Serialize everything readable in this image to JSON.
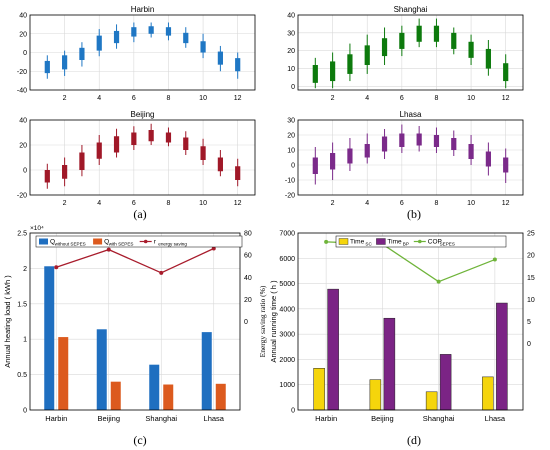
{
  "panel_labels": [
    "(a)",
    "(b)",
    "(c)",
    "(d)"
  ],
  "chart_data": [
    {
      "type": "boxplot",
      "title": "Harbin",
      "color": "#1f77c4",
      "x_ticks": [
        2,
        4,
        6,
        8,
        10,
        12
      ],
      "y_ticks": [
        -40,
        -20,
        0,
        20,
        40
      ],
      "xlim": [
        0,
        13
      ],
      "ylim": [
        -40,
        40
      ],
      "grid": true,
      "boxes": [
        {
          "x": 1,
          "whisker_low": -28,
          "q1": -22,
          "q3": -9,
          "whisker_high": -3
        },
        {
          "x": 2,
          "whisker_low": -25,
          "q1": -18,
          "q3": -3,
          "whisker_high": 2
        },
        {
          "x": 3,
          "whisker_low": -15,
          "q1": -8,
          "q3": 5,
          "whisker_high": 11
        },
        {
          "x": 4,
          "whisker_low": -4,
          "q1": 2,
          "q3": 18,
          "whisker_high": 25
        },
        {
          "x": 5,
          "whisker_low": 4,
          "q1": 10,
          "q3": 23,
          "whisker_high": 30
        },
        {
          "x": 6,
          "whisker_low": 11,
          "q1": 17,
          "q3": 27,
          "whisker_high": 32
        },
        {
          "x": 7,
          "whisker_low": 16,
          "q1": 20,
          "q3": 28,
          "whisker_high": 32
        },
        {
          "x": 8,
          "whisker_low": 13,
          "q1": 18,
          "q3": 27,
          "whisker_high": 32
        },
        {
          "x": 9,
          "whisker_low": 5,
          "q1": 10,
          "q3": 21,
          "whisker_high": 27
        },
        {
          "x": 10,
          "whisker_low": -6,
          "q1": 0,
          "q3": 12,
          "whisker_high": 20
        },
        {
          "x": 11,
          "whisker_low": -20,
          "q1": -13,
          "q3": 1,
          "whisker_high": 7
        },
        {
          "x": 12,
          "whisker_low": -28,
          "q1": -20,
          "q3": -6,
          "whisker_high": 0
        }
      ]
    },
    {
      "type": "boxplot",
      "title": "Shanghai",
      "color": "#0d7a0d",
      "x_ticks": [
        2,
        4,
        6,
        8,
        10,
        12
      ],
      "y_ticks": [
        0,
        10,
        20,
        30,
        40
      ],
      "xlim": [
        0,
        13
      ],
      "ylim": [
        -2,
        40
      ],
      "grid": true,
      "boxes": [
        {
          "x": 1,
          "whisker_low": -1,
          "q1": 2,
          "q3": 12,
          "whisker_high": 16
        },
        {
          "x": 2,
          "whisker_low": -1,
          "q1": 3,
          "q3": 14,
          "whisker_high": 19
        },
        {
          "x": 3,
          "whisker_low": 3,
          "q1": 7,
          "q3": 18,
          "whisker_high": 24
        },
        {
          "x": 4,
          "whisker_low": 7,
          "q1": 12,
          "q3": 23,
          "whisker_high": 29
        },
        {
          "x": 5,
          "whisker_low": 12,
          "q1": 17,
          "q3": 27,
          "whisker_high": 33
        },
        {
          "x": 6,
          "whisker_low": 17,
          "q1": 21,
          "q3": 30,
          "whisker_high": 34
        },
        {
          "x": 7,
          "whisker_low": 22,
          "q1": 25,
          "q3": 34,
          "whisker_high": 38
        },
        {
          "x": 8,
          "whisker_low": 22,
          "q1": 25,
          "q3": 34,
          "whisker_high": 38
        },
        {
          "x": 9,
          "whisker_low": 18,
          "q1": 21,
          "q3": 30,
          "whisker_high": 33
        },
        {
          "x": 10,
          "whisker_low": 12,
          "q1": 16,
          "q3": 25,
          "whisker_high": 29
        },
        {
          "x": 11,
          "whisker_low": 6,
          "q1": 10,
          "q3": 21,
          "whisker_high": 26
        },
        {
          "x": 12,
          "whisker_low": -1,
          "q1": 3,
          "q3": 13,
          "whisker_high": 18
        }
      ]
    },
    {
      "type": "boxplot",
      "title": "Beijing",
      "color": "#a01828",
      "x_ticks": [
        2,
        4,
        6,
        8,
        10,
        12
      ],
      "y_ticks": [
        -20,
        0,
        20,
        40
      ],
      "xlim": [
        0,
        13
      ],
      "ylim": [
        -20,
        40
      ],
      "grid": true,
      "boxes": [
        {
          "x": 1,
          "whisker_low": -15,
          "q1": -10,
          "q3": 0,
          "whisker_high": 5
        },
        {
          "x": 2,
          "whisker_low": -13,
          "q1": -7,
          "q3": 4,
          "whisker_high": 10
        },
        {
          "x": 3,
          "whisker_low": -5,
          "q1": 0,
          "q3": 14,
          "whisker_high": 20
        },
        {
          "x": 4,
          "whisker_low": 4,
          "q1": 9,
          "q3": 22,
          "whisker_high": 28
        },
        {
          "x": 5,
          "whisker_low": 10,
          "q1": 14,
          "q3": 27,
          "whisker_high": 33
        },
        {
          "x": 6,
          "whisker_low": 16,
          "q1": 20,
          "q3": 30,
          "whisker_high": 35
        },
        {
          "x": 7,
          "whisker_low": 20,
          "q1": 23,
          "q3": 32,
          "whisker_high": 37
        },
        {
          "x": 8,
          "whisker_low": 19,
          "q1": 22,
          "q3": 30,
          "whisker_high": 34
        },
        {
          "x": 9,
          "whisker_low": 12,
          "q1": 16,
          "q3": 26,
          "whisker_high": 31
        },
        {
          "x": 10,
          "whisker_low": 4,
          "q1": 8,
          "q3": 19,
          "whisker_high": 25
        },
        {
          "x": 11,
          "whisker_low": -5,
          "q1": -1,
          "q3": 10,
          "whisker_high": 16
        },
        {
          "x": 12,
          "whisker_low": -13,
          "q1": -8,
          "q3": 3,
          "whisker_high": 9
        }
      ]
    },
    {
      "type": "boxplot",
      "title": "Lhasa",
      "color": "#7b2a8a",
      "x_ticks": [
        2,
        4,
        6,
        8,
        10,
        12
      ],
      "y_ticks": [
        -20,
        -10,
        0,
        10,
        20,
        30
      ],
      "xlim": [
        0,
        13
      ],
      "ylim": [
        -20,
        30
      ],
      "grid": true,
      "boxes": [
        {
          "x": 1,
          "whisker_low": -13,
          "q1": -6,
          "q3": 5,
          "whisker_high": 12
        },
        {
          "x": 2,
          "whisker_low": -10,
          "q1": -3,
          "q3": 8,
          "whisker_high": 15
        },
        {
          "x": 3,
          "whisker_low": -4,
          "q1": 1,
          "q3": 11,
          "whisker_high": 18
        },
        {
          "x": 4,
          "whisker_low": 1,
          "q1": 5,
          "q3": 14,
          "whisker_high": 21
        },
        {
          "x": 5,
          "whisker_low": 4,
          "q1": 9,
          "q3": 19,
          "whisker_high": 24
        },
        {
          "x": 6,
          "whisker_low": 8,
          "q1": 12,
          "q3": 21,
          "whisker_high": 27
        },
        {
          "x": 7,
          "whisker_low": 9,
          "q1": 13,
          "q3": 21,
          "whisker_high": 26
        },
        {
          "x": 8,
          "whisker_low": 8,
          "q1": 12,
          "q3": 20,
          "whisker_high": 25
        },
        {
          "x": 9,
          "whisker_low": 6,
          "q1": 10,
          "q3": 18,
          "whisker_high": 23
        },
        {
          "x": 10,
          "whisker_low": 0,
          "q1": 4,
          "q3": 14,
          "whisker_high": 20
        },
        {
          "x": 11,
          "whisker_low": -7,
          "q1": -1,
          "q3": 9,
          "whisker_high": 15
        },
        {
          "x": 12,
          "whisker_low": -12,
          "q1": -5,
          "q3": 5,
          "whisker_high": 11
        }
      ]
    },
    {
      "type": "bar+line",
      "categories": [
        "Harbin",
        "Beijing",
        "Shanghai",
        "Lhasa"
      ],
      "ylabel": "Annual heating load ( kWh )",
      "y2label": "Energy saving ratio (%)",
      "y_multiplier": "×10⁴",
      "ylim": [
        0,
        2.5
      ],
      "y_ticks": [
        0,
        0.5,
        1,
        1.5,
        2,
        2.5
      ],
      "y2lim": [
        -80,
        80
      ],
      "y2_ticks": [
        0,
        20,
        40,
        60,
        80
      ],
      "grid": true,
      "legend_position": "top",
      "series": [
        {
          "name": "Q",
          "name_sub": "without SEPES",
          "kind": "bar",
          "color": "#1f6fc0",
          "values": [
            2.03,
            1.14,
            0.64,
            1.1
          ]
        },
        {
          "name": "Q",
          "name_sub": "with SEPES",
          "kind": "bar",
          "color": "#dc5a1e",
          "values": [
            1.03,
            0.4,
            0.36,
            0.37
          ]
        },
        {
          "name": "r",
          "name_sub": "energy saving",
          "kind": "line",
          "color": "#a81c2c",
          "values": [
            49,
            65,
            44,
            66
          ]
        }
      ]
    },
    {
      "type": "bar+line",
      "categories": [
        "Harbin",
        "Beijing",
        "Shanghai",
        "Lhasa"
      ],
      "ylabel": "Annual running time ( h )",
      "ylim": [
        0,
        7000
      ],
      "y_ticks": [
        0,
        1000,
        2000,
        3000,
        4000,
        5000,
        6000,
        7000
      ],
      "y2lim": [
        -15,
        25
      ],
      "y2_ticks": [
        0,
        5,
        10,
        15,
        20,
        25
      ],
      "grid": true,
      "legend_position": "top",
      "series": [
        {
          "name": "Time",
          "name_sub": "SC",
          "kind": "bar",
          "color": "#f5d50c",
          "values": [
            1650,
            1200,
            720,
            1310
          ]
        },
        {
          "name": "Time",
          "name_sub": "BP",
          "kind": "bar",
          "color": "#7b2485",
          "values": [
            4780,
            3630,
            2200,
            4230
          ]
        },
        {
          "name": "COP",
          "name_sub": "SEPES",
          "kind": "line",
          "color": "#6fb43a",
          "values": [
            23,
            22.5,
            14,
            19
          ]
        }
      ]
    }
  ]
}
